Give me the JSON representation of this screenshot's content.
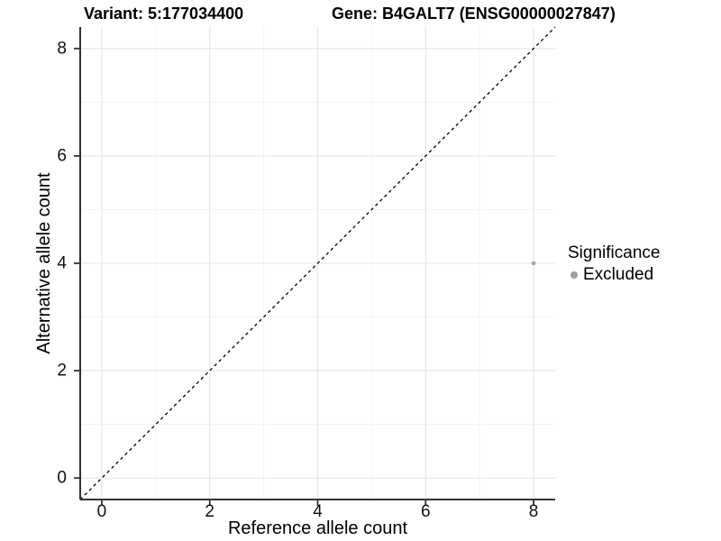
{
  "chart_data": {
    "type": "scatter",
    "title_left": "Variant: 5:177034400",
    "title_right": "Gene: B4GALT7 (ENSG00000027847)",
    "xlabel": "Reference allele count",
    "ylabel": "Alternative allele count",
    "xlim": [
      -0.4,
      8.4
    ],
    "ylim": [
      -0.4,
      8.4
    ],
    "x_major_ticks": [
      0,
      2,
      4,
      6,
      8
    ],
    "y_major_ticks": [
      0,
      2,
      4,
      6,
      8
    ],
    "x_minor_gridlines": [
      1,
      3,
      5,
      7
    ],
    "y_minor_gridlines": [
      1,
      3,
      5,
      7
    ],
    "grid": "major+minor",
    "legend": {
      "position": "right",
      "title": "Significance",
      "items": [
        {
          "label": "Excluded",
          "color": "#9e9e9e"
        }
      ]
    },
    "series": [
      {
        "name": "Excluded",
        "color": "#a6a6a6",
        "marker": "circle",
        "marker_radius": 2.3,
        "points": [
          [
            8,
            4
          ]
        ]
      }
    ],
    "reference_line": {
      "style": "dashed",
      "color": "#000000",
      "x1": -0.4,
      "y1": -0.4,
      "x2": 8.4,
      "y2": 8.4
    },
    "style": {
      "axis_color": "#333333",
      "grid_major_color": "#e5e5e5",
      "grid_minor_color": "#f2f2f2",
      "background": "#ffffff"
    }
  }
}
